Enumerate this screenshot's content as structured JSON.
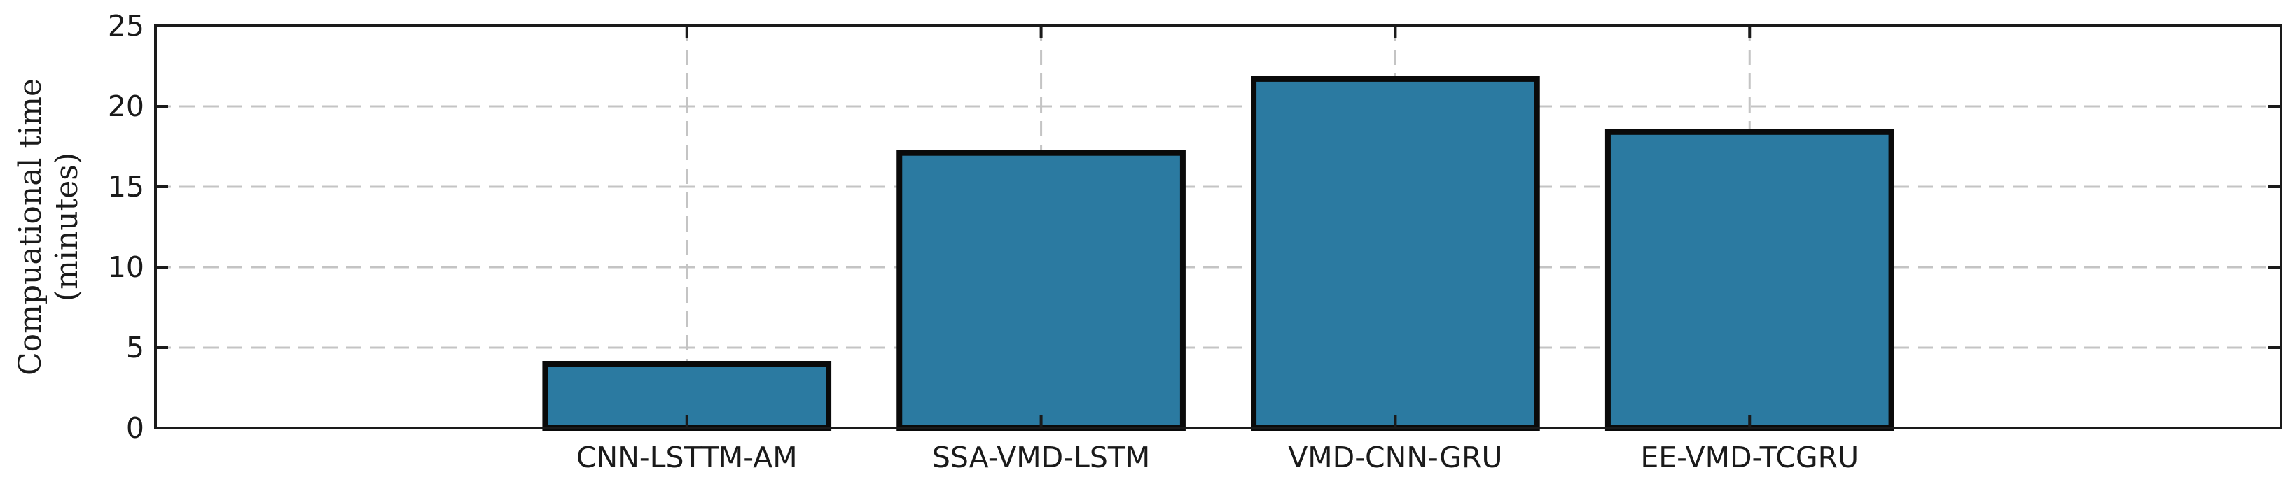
{
  "chart_data": {
    "type": "bar",
    "categories": [
      "",
      "CNN-LSTTM-AM",
      "SSA-VMD-LSTM",
      "VMD-CNN-GRU",
      "EE-VMD-TCGRU",
      ""
    ],
    "values": [
      null,
      4.0,
      17.1,
      21.7,
      18.4,
      null
    ],
    "title": "",
    "xlabel": "",
    "ylabel": "Compuational time",
    "ylabel_unit": "(minutes)",
    "ylim": [
      0,
      25
    ],
    "yticks": [
      0,
      5,
      10,
      15,
      20,
      25
    ],
    "grid": true,
    "bar_color": "#2b7aa1",
    "edge_color": "#0a0a0a"
  }
}
